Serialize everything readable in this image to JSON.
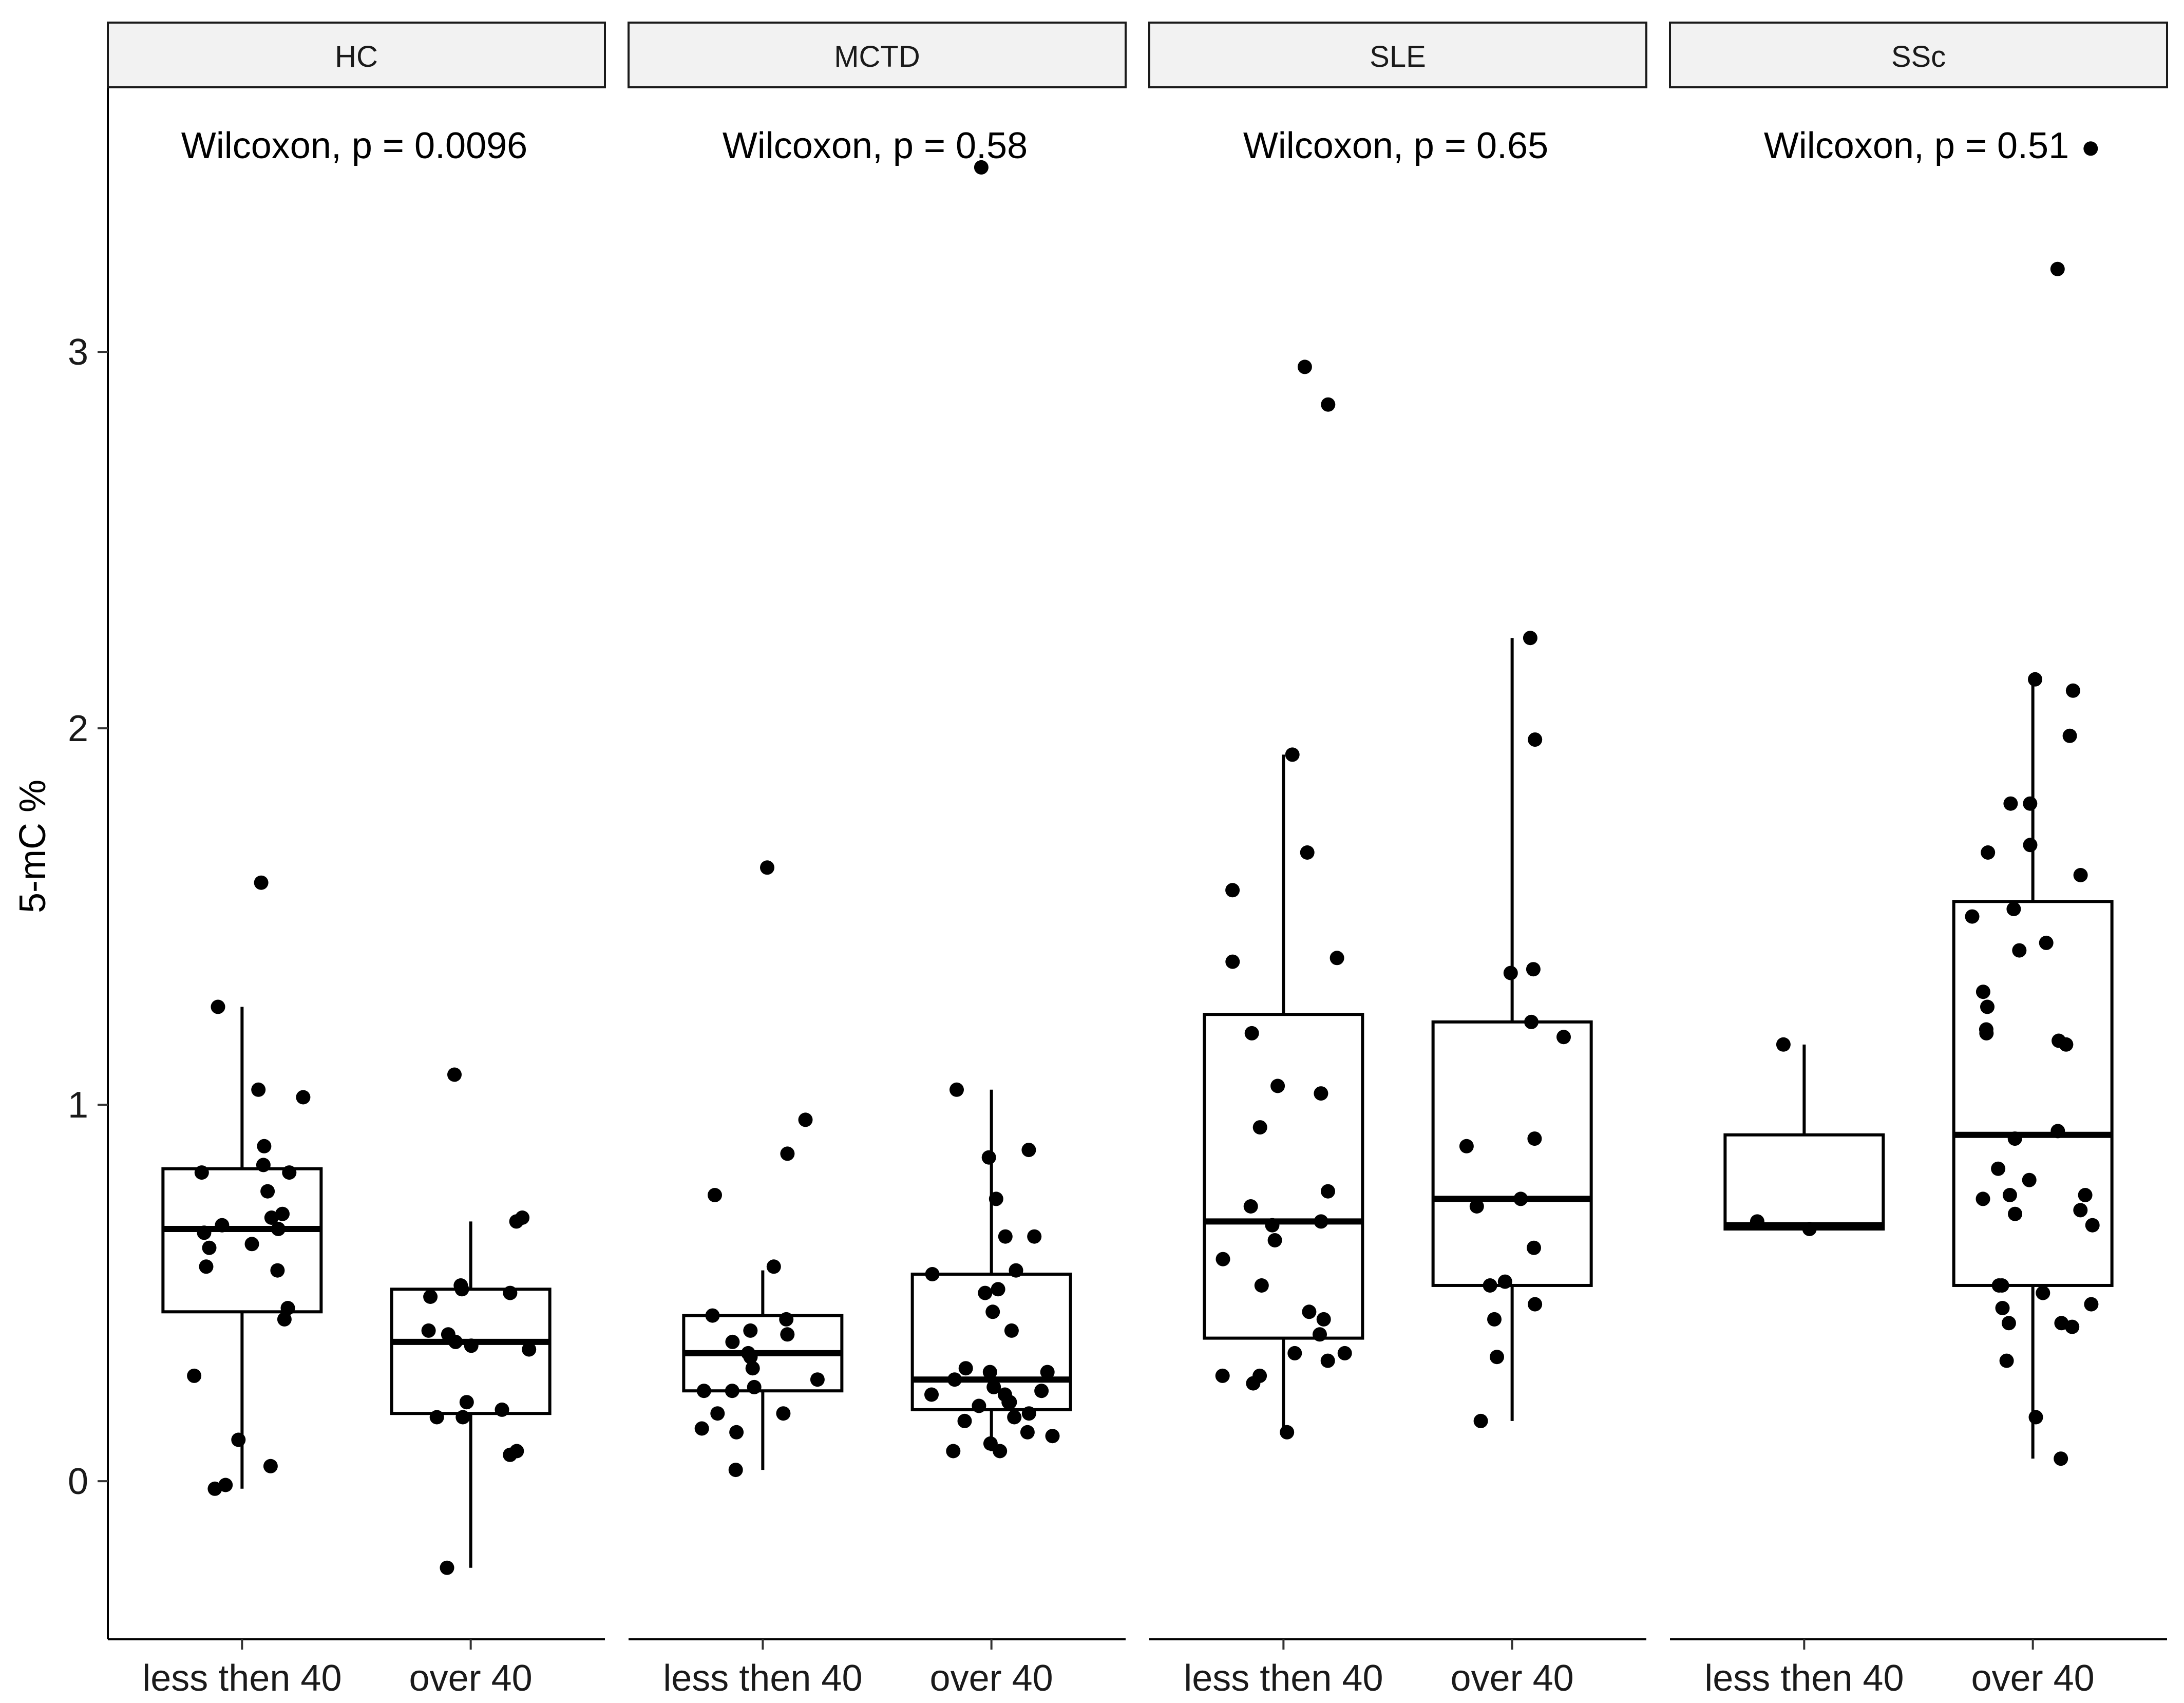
{
  "chart_data": {
    "type": "box",
    "subtype": "faceted boxplot with jittered points",
    "ylabel": "5-mC %",
    "xlabel": "",
    "ylim": [
      -0.42,
      3.7
    ],
    "y_ticks": [
      0,
      1,
      2,
      3
    ],
    "categories": [
      "less then 40",
      "over 40"
    ],
    "colors": {
      "points": "#000000",
      "box_fill": "#ffffff",
      "strip": "#f2f2f2"
    },
    "facets": [
      {
        "name": "HC",
        "test_label": "Wilcoxon, p = 0.0096",
        "groups": [
          {
            "category": "less then 40",
            "box": {
              "q1": 0.45,
              "median": 0.67,
              "q3": 0.83,
              "whisker_low": -0.02,
              "whisker_high": 1.26
            },
            "points": [
              1.59,
              1.26,
              1.04,
              1.02,
              0.89,
              0.84,
              0.82,
              0.82,
              0.77,
              0.71,
              0.7,
              0.68,
              0.67,
              0.66,
              0.63,
              0.62,
              0.57,
              0.56,
              0.46,
              0.43,
              0.28,
              0.11,
              0.04,
              -0.01,
              -0.02
            ]
          },
          {
            "category": "over 40",
            "box": {
              "q1": 0.18,
              "median": 0.37,
              "q3": 0.51,
              "whisker_low": -0.23,
              "whisker_high": 0.69
            },
            "points": [
              1.08,
              0.7,
              0.69,
              0.52,
              0.51,
              0.5,
              0.49,
              0.4,
              0.39,
              0.37,
              0.36,
              0.35,
              0.21,
              0.19,
              0.17,
              0.17,
              0.08,
              0.07,
              -0.23
            ]
          }
        ]
      },
      {
        "name": "MCTD",
        "test_label": "Wilcoxon, p = 0.58",
        "groups": [
          {
            "category": "less then 40",
            "box": {
              "q1": 0.24,
              "median": 0.34,
              "q3": 0.44,
              "whisker_low": 0.03,
              "whisker_high": 0.56
            },
            "points": [
              1.63,
              0.96,
              0.87,
              0.76,
              0.57,
              0.44,
              0.43,
              0.4,
              0.39,
              0.37,
              0.34,
              0.33,
              0.3,
              0.27,
              0.25,
              0.24,
              0.24,
              0.18,
              0.18,
              0.14,
              0.13,
              0.03
            ]
          },
          {
            "category": "over 40",
            "box": {
              "q1": 0.19,
              "median": 0.27,
              "q3": 0.55,
              "whisker_low": 0.08,
              "whisker_high": 1.04
            },
            "points": [
              3.49,
              1.04,
              0.88,
              0.86,
              0.75,
              0.65,
              0.65,
              0.56,
              0.55,
              0.51,
              0.5,
              0.45,
              0.4,
              0.3,
              0.29,
              0.29,
              0.27,
              0.25,
              0.24,
              0.23,
              0.23,
              0.21,
              0.21,
              0.2,
              0.18,
              0.17,
              0.16,
              0.13,
              0.12,
              0.1,
              0.08,
              0.08
            ]
          }
        ]
      },
      {
        "name": "SLE",
        "test_label": "Wilcoxon, p = 0.65",
        "groups": [
          {
            "category": "less then 40",
            "box": {
              "q1": 0.38,
              "median": 0.69,
              "q3": 1.24,
              "whisker_low": 0.13,
              "whisker_high": 1.93
            },
            "points": [
              2.96,
              2.86,
              1.93,
              1.67,
              1.57,
              1.39,
              1.38,
              1.19,
              1.05,
              1.03,
              0.94,
              0.77,
              0.73,
              0.69,
              0.68,
              0.64,
              0.59,
              0.52,
              0.45,
              0.43,
              0.39,
              0.34,
              0.34,
              0.32,
              0.28,
              0.28,
              0.26,
              0.13
            ]
          },
          {
            "category": "over 40",
            "box": {
              "q1": 0.52,
              "median": 0.75,
              "q3": 1.22,
              "whisker_low": 0.16,
              "whisker_high": 2.24
            },
            "points": [
              2.24,
              1.97,
              1.36,
              1.35,
              1.22,
              1.18,
              0.91,
              0.89,
              0.75,
              0.73,
              0.62,
              0.53,
              0.52,
              0.47,
              0.43,
              0.33,
              0.16
            ]
          }
        ]
      },
      {
        "name": "SSc",
        "test_label": "Wilcoxon, p = 0.51",
        "groups": [
          {
            "category": "less then 40",
            "box": {
              "q1": 0.67,
              "median": 0.68,
              "q3": 0.92,
              "whisker_low": 0.67,
              "whisker_high": 1.16
            },
            "points": [
              1.16,
              0.69,
              0.67
            ]
          },
          {
            "category": "over 40",
            "box": {
              "q1": 0.52,
              "median": 0.92,
              "q3": 1.54,
              "whisker_low": 0.06,
              "whisker_high": 2.13
            },
            "points": [
              3.54,
              3.22,
              2.13,
              2.1,
              1.98,
              1.8,
              1.8,
              1.69,
              1.67,
              1.61,
              1.52,
              1.5,
              1.43,
              1.41,
              1.3,
              1.26,
              1.2,
              1.19,
              1.16,
              1.17,
              0.93,
              0.91,
              0.83,
              0.8,
              0.76,
              0.76,
              0.75,
              0.72,
              0.71,
              0.68,
              0.52,
              0.52,
              0.5,
              0.47,
              0.46,
              0.42,
              0.42,
              0.41,
              0.32,
              0.17,
              0.06
            ]
          }
        ]
      }
    ]
  }
}
